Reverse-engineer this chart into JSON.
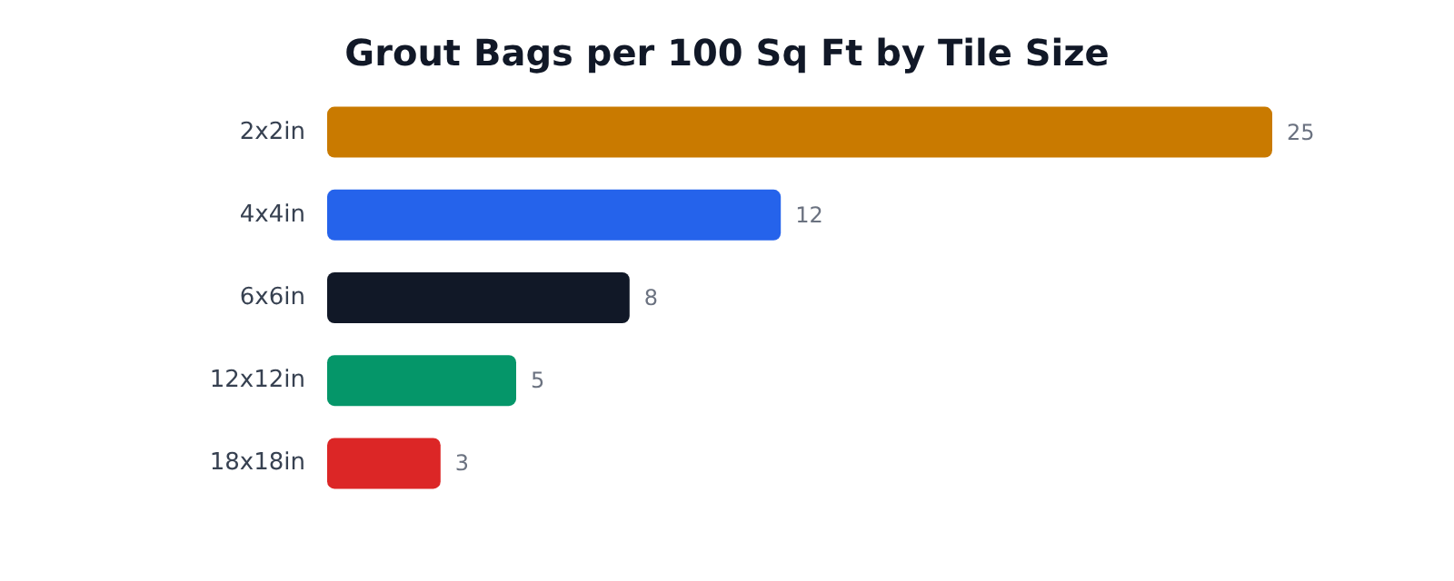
{
  "chart_data": {
    "type": "bar",
    "orientation": "horizontal",
    "title": "Grout Bags per 100 Sq Ft by Tile Size",
    "categories": [
      "2x2in",
      "4x4in",
      "6x6in",
      "12x12in",
      "18x18in"
    ],
    "values": [
      25,
      12,
      8,
      5,
      3
    ],
    "colors": [
      "#c97a00",
      "#2563eb",
      "#111827",
      "#059669",
      "#dc2626"
    ],
    "data_labels": true
  }
}
